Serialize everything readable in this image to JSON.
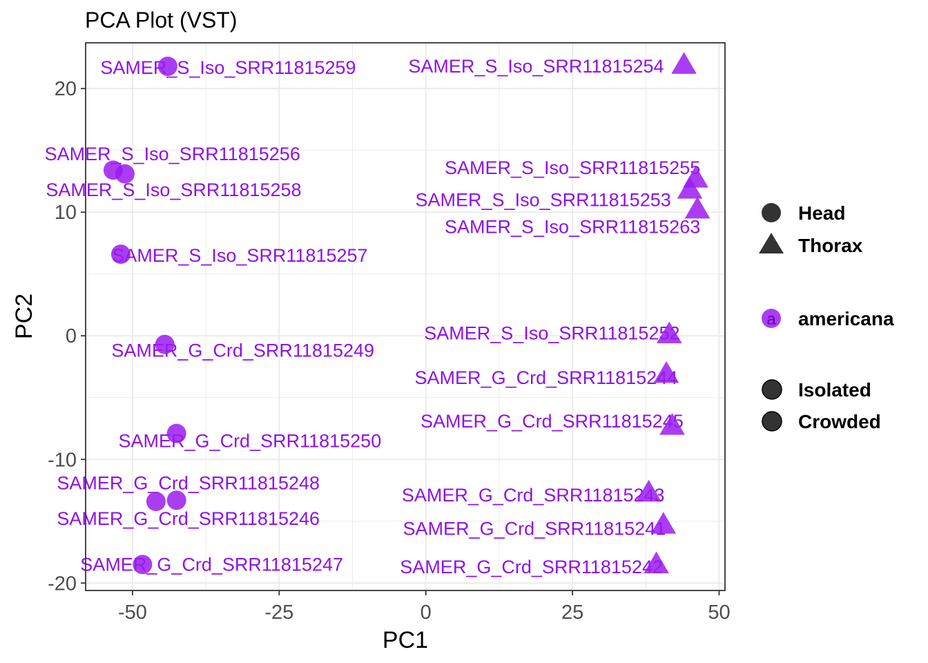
{
  "colors": {
    "point": "#9B1BF0",
    "label": "#9010E8",
    "legend_dark": "#333333",
    "grid": "#EBEBEB",
    "panel_border": "#333333"
  },
  "chart_data": {
    "type": "scatter",
    "title": "PCA Plot (VST)",
    "xlabel": "PC1",
    "ylabel": "PC2",
    "xlim": [
      -58,
      51
    ],
    "ylim": [
      -20.6,
      23.7
    ],
    "x_ticks": [
      -50,
      -25,
      0,
      25,
      50
    ],
    "x_tick_labels": [
      "-50",
      "-25",
      "0",
      "25",
      "50"
    ],
    "y_ticks": [
      -20,
      -10,
      0,
      10,
      20
    ],
    "y_tick_labels": [
      "-20",
      "-10",
      "0",
      "10",
      "20"
    ],
    "grid": true,
    "legend_position": "right",
    "legend": {
      "shape": [
        {
          "label": "Head",
          "shape": "circle"
        },
        {
          "label": "Thorax",
          "shape": "triangle"
        }
      ],
      "color": [
        {
          "label": "americana",
          "key_letter": "a"
        }
      ],
      "condition": [
        {
          "label": "Isolated"
        },
        {
          "label": "Crowded"
        }
      ]
    },
    "points": [
      {
        "label": "SAMER_S_Iso_SRR11815259",
        "x": -44.0,
        "y": 21.8,
        "shape": "circle"
      },
      {
        "label": "SAMER_S_Iso_SRR11815256",
        "x": -53.3,
        "y": 13.4,
        "shape": "circle"
      },
      {
        "label": "SAMER_S_Iso_SRR11815258",
        "x": -51.3,
        "y": 13.1,
        "shape": "circle"
      },
      {
        "label": "SAMER_S_Iso_SRR11815257",
        "x": -52.0,
        "y": 6.6,
        "shape": "circle"
      },
      {
        "label": "SAMER_G_Crd_SRR11815249",
        "x": -44.5,
        "y": -0.7,
        "shape": "circle"
      },
      {
        "label": "SAMER_G_Crd_SRR11815250",
        "x": -42.5,
        "y": -7.9,
        "shape": "circle"
      },
      {
        "label": "SAMER_G_Crd_SRR11815248",
        "x": -42.5,
        "y": -13.3,
        "shape": "circle"
      },
      {
        "label": "SAMER_G_Crd_SRR11815246",
        "x": -46.0,
        "y": -13.4,
        "shape": "circle"
      },
      {
        "label": "SAMER_G_Crd_SRR11815247",
        "x": -48.3,
        "y": -18.5,
        "shape": "circle"
      },
      {
        "label": "SAMER_S_Iso_SRR11815254",
        "x": 44.0,
        "y": 22.0,
        "shape": "triangle"
      },
      {
        "label": "SAMER_S_Iso_SRR11815255",
        "x": 46.0,
        "y": 12.8,
        "shape": "triangle"
      },
      {
        "label": "SAMER_S_Iso_SRR11815253",
        "x": 45.0,
        "y": 11.9,
        "shape": "triangle"
      },
      {
        "label": "SAMER_S_Iso_SRR11815263",
        "x": 46.3,
        "y": 10.3,
        "shape": "triangle"
      },
      {
        "label": "SAMER_S_Iso_SRR11815252",
        "x": 41.5,
        "y": 0.2,
        "shape": "triangle"
      },
      {
        "label": "SAMER_G_Crd_SRR11815244",
        "x": 41.0,
        "y": -3.0,
        "shape": "triangle"
      },
      {
        "label": "SAMER_G_Crd_SRR11815245",
        "x": 42.0,
        "y": -7.2,
        "shape": "triangle"
      },
      {
        "label": "SAMER_G_Crd_SRR11815243",
        "x": 38.0,
        "y": -12.6,
        "shape": "triangle"
      },
      {
        "label": "SAMER_G_Crd_SRR11815241",
        "x": 40.5,
        "y": -15.2,
        "shape": "triangle"
      },
      {
        "label": "SAMER_G_Crd_SRR11815242",
        "x": 39.3,
        "y": -18.4,
        "shape": "triangle"
      }
    ],
    "labels": [
      {
        "text": "SAMER_S_Iso_SRR11815259",
        "x": -33.7,
        "y": 21.7,
        "point": 0
      },
      {
        "text": "SAMER_S_Iso_SRR11815256",
        "x": -43.2,
        "y": 14.7,
        "point": 1
      },
      {
        "text": "SAMER_S_Iso_SRR11815258",
        "x": -43.0,
        "y": 11.8,
        "point": 2
      },
      {
        "text": "SAMER_S_Iso_SRR11815257",
        "x": -31.7,
        "y": 6.5,
        "point": 3
      },
      {
        "text": "SAMER_G_Crd_SRR11815249",
        "x": -31.2,
        "y": -1.2,
        "point": 4
      },
      {
        "text": "SAMER_G_Crd_SRR11815250",
        "x": -30.0,
        "y": -8.5,
        "point": 5
      },
      {
        "text": "SAMER_G_Crd_SRR11815248",
        "x": -40.5,
        "y": -11.9,
        "point": 6
      },
      {
        "text": "SAMER_G_Crd_SRR11815246",
        "x": -40.5,
        "y": -14.8,
        "point": 7
      },
      {
        "text": "SAMER_G_Crd_SRR11815247",
        "x": -36.5,
        "y": -18.5,
        "point": 8
      },
      {
        "text": "SAMER_S_Iso_SRR11815254",
        "x": 18.8,
        "y": 21.8,
        "point": 9
      },
      {
        "text": "SAMER_S_Iso_SRR11815255",
        "x": 25.0,
        "y": 13.6,
        "point": 10
      },
      {
        "text": "SAMER_S_Iso_SRR11815253",
        "x": 20.0,
        "y": 11.0,
        "point": 11
      },
      {
        "text": "SAMER_S_Iso_SRR11815263",
        "x": 25.0,
        "y": 8.8,
        "point": 12
      },
      {
        "text": "SAMER_S_Iso_SRR11815252",
        "x": 21.5,
        "y": 0.2,
        "point": 13
      },
      {
        "text": "SAMER_G_Crd_SRR11815244",
        "x": 20.5,
        "y": -3.4,
        "point": 14
      },
      {
        "text": "SAMER_G_Crd_SRR11815245",
        "x": 21.5,
        "y": -6.9,
        "point": 15
      },
      {
        "text": "SAMER_G_Crd_SRR11815243",
        "x": 18.3,
        "y": -12.9,
        "point": 16
      },
      {
        "text": "SAMER_G_Crd_SRR11815241",
        "x": 18.5,
        "y": -15.6,
        "point": 17
      },
      {
        "text": "SAMER_G_Crd_SRR11815242",
        "x": 18.0,
        "y": -18.7,
        "point": 18
      }
    ]
  }
}
